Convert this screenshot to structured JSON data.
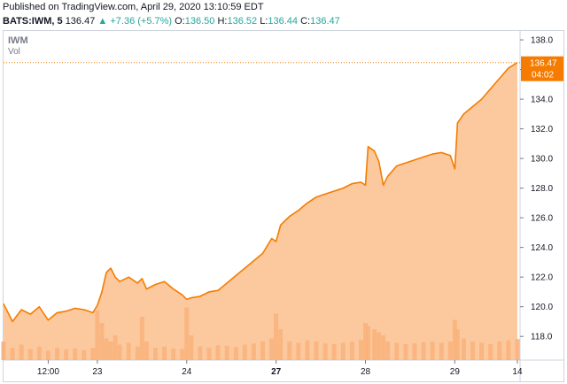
{
  "header": {
    "published": "Published on TradingView.com, April 29, 2020 13:10:59 EDT",
    "symbol": "BATS:IWM, 5",
    "last": "136.47",
    "change": "▲ +7.36 (+5.7%)",
    "o_label": "O:",
    "o_value": "136.50",
    "h_label": "H:",
    "h_value": "136.52",
    "l_label": "L:",
    "l_value": "136.44",
    "c_label": "C:",
    "c_value": "136.47"
  },
  "legend": {
    "symbol": "IWM",
    "volume": "Vol"
  },
  "price_label": {
    "value": "136.47",
    "countdown": "04:02"
  },
  "colors": {
    "line": "#f57c00",
    "fill": "#fbb67d",
    "volume": "#f5a265",
    "label_bg": "#f57c00",
    "up": "#26a69a"
  },
  "chart_data": {
    "type": "area",
    "ylim": [
      116.4,
      138.6
    ],
    "y_ticks": [
      118,
      120,
      122,
      124,
      126,
      128,
      130,
      132,
      134,
      136,
      138
    ],
    "x_ticks": [
      "12:00",
      "23",
      "24",
      "27",
      "28",
      "29",
      "14"
    ],
    "x_tick_pos": [
      0.45,
      1.0,
      2.0,
      3.0,
      4.0,
      5.0,
      5.7
    ],
    "x_range": [
      -0.05,
      5.73
    ],
    "series": [
      {
        "x": [
          -0.05,
          0.05,
          0.15,
          0.25,
          0.35,
          0.45,
          0.55,
          0.65,
          0.75,
          0.85,
          0.95,
          1.0,
          1.05,
          1.1,
          1.15,
          1.2,
          1.25,
          1.35,
          1.45,
          1.5,
          1.55,
          1.65,
          1.75,
          1.85,
          1.95,
          2.0,
          2.05,
          2.15,
          2.25,
          2.35,
          2.45,
          2.55,
          2.65,
          2.75,
          2.85,
          2.95,
          3.0,
          3.05,
          3.15,
          3.25,
          3.35,
          3.45,
          3.55,
          3.65,
          3.75,
          3.85,
          3.95,
          4.0,
          4.03,
          4.1,
          4.15,
          4.2,
          4.25,
          4.35,
          4.45,
          4.55,
          4.65,
          4.75,
          4.85,
          4.95,
          5.0,
          5.03,
          5.1,
          5.2,
          5.3,
          5.4,
          5.5,
          5.6,
          5.7
        ],
        "values": [
          120.2,
          119.0,
          119.8,
          119.5,
          120.0,
          119.1,
          119.6,
          119.7,
          119.9,
          119.8,
          119.6,
          120.1,
          121.0,
          122.3,
          122.6,
          122.0,
          121.7,
          122.0,
          121.6,
          121.9,
          121.2,
          121.5,
          121.7,
          121.2,
          120.8,
          120.5,
          120.6,
          120.7,
          121.0,
          121.1,
          121.6,
          122.1,
          122.6,
          123.1,
          123.6,
          124.6,
          124.4,
          125.5,
          126.1,
          126.5,
          127.0,
          127.4,
          127.6,
          127.8,
          128.0,
          128.3,
          128.4,
          128.2,
          130.8,
          130.5,
          129.8,
          128.2,
          128.8,
          129.5,
          129.7,
          129.9,
          130.1,
          130.3,
          130.4,
          130.2,
          129.3,
          132.4,
          133.0,
          133.5,
          134.0,
          134.7,
          135.4,
          136.1,
          136.47
        ]
      }
    ],
    "volume": [
      0.3,
      0.2,
      0.25,
      0.18,
      0.22,
      0.15,
      0.2,
      0.17,
      0.19,
      0.16,
      0.2,
      0.8,
      0.6,
      0.35,
      0.3,
      0.4,
      0.25,
      0.28,
      0.22,
      0.7,
      0.3,
      0.2,
      0.22,
      0.19,
      0.18,
      0.85,
      0.4,
      0.22,
      0.2,
      0.24,
      0.23,
      0.21,
      0.25,
      0.27,
      0.3,
      0.35,
      0.75,
      0.5,
      0.3,
      0.28,
      0.32,
      0.3,
      0.27,
      0.26,
      0.28,
      0.3,
      0.33,
      0.6,
      0.55,
      0.5,
      0.45,
      0.4,
      0.3,
      0.28,
      0.26,
      0.27,
      0.29,
      0.3,
      0.28,
      0.3,
      0.65,
      0.5,
      0.35,
      0.3,
      0.28,
      0.26,
      0.3,
      0.32,
      0.34
    ]
  }
}
